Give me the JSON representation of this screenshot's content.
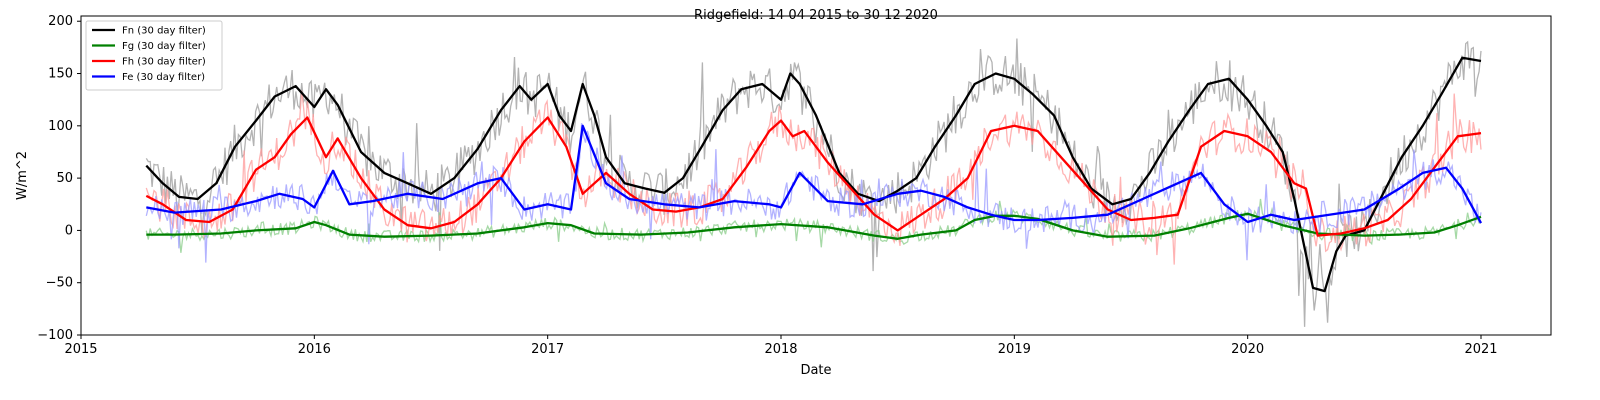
{
  "chart_data": {
    "type": "line",
    "title": "Ridgefield: 14 04 2015 to 30 12 2020",
    "xlabel": "Date",
    "ylabel": "W/m^2",
    "xlim": [
      2015.0,
      2021.3
    ],
    "ylim": [
      -100,
      205
    ],
    "x_ticks": [
      2015,
      2016,
      2017,
      2018,
      2019,
      2020,
      2021
    ],
    "x_tick_labels": [
      "2015",
      "2016",
      "2017",
      "2018",
      "2019",
      "2020",
      "2021"
    ],
    "y_ticks": [
      -100,
      -50,
      0,
      50,
      100,
      150,
      200
    ],
    "y_tick_labels": [
      "−100",
      "−50",
      "0",
      "50",
      "100",
      "150",
      "200"
    ],
    "grid": false,
    "legend_position": "top-left",
    "series": [
      {
        "name": "Fn (30 day filter)",
        "color": "#000000",
        "raw_color": "#999999",
        "x": [
          2015.28,
          2015.35,
          2015.42,
          2015.5,
          2015.58,
          2015.66,
          2015.75,
          2015.83,
          2015.92,
          2016.0,
          2016.05,
          2016.1,
          2016.2,
          2016.3,
          2016.4,
          2016.5,
          2016.6,
          2016.7,
          2016.8,
          2016.88,
          2016.93,
          2017.0,
          2017.05,
          2017.1,
          2017.15,
          2017.2,
          2017.25,
          2017.33,
          2017.42,
          2017.5,
          2017.58,
          2017.66,
          2017.75,
          2017.83,
          2017.92,
          2018.0,
          2018.04,
          2018.08,
          2018.15,
          2018.25,
          2018.33,
          2018.42,
          2018.5,
          2018.58,
          2018.66,
          2018.75,
          2018.83,
          2018.92,
          2019.0,
          2019.08,
          2019.17,
          2019.25,
          2019.33,
          2019.42,
          2019.5,
          2019.58,
          2019.66,
          2019.75,
          2019.83,
          2019.92,
          2020.0,
          2020.08,
          2020.15,
          2020.2,
          2020.28,
          2020.33,
          2020.38,
          2020.42,
          2020.5,
          2020.58,
          2020.66,
          2020.75,
          2020.83,
          2020.92,
          2021.0
        ],
        "values": [
          62,
          45,
          32,
          30,
          45,
          80,
          105,
          128,
          138,
          118,
          135,
          120,
          75,
          55,
          45,
          35,
          50,
          78,
          115,
          138,
          125,
          140,
          110,
          95,
          140,
          110,
          70,
          45,
          40,
          36,
          50,
          80,
          115,
          135,
          140,
          125,
          150,
          140,
          110,
          55,
          35,
          28,
          38,
          50,
          80,
          110,
          140,
          150,
          145,
          130,
          110,
          70,
          40,
          25,
          30,
          55,
          85,
          115,
          140,
          145,
          125,
          100,
          75,
          30,
          -55,
          -58,
          -20,
          -5,
          0,
          35,
          70,
          100,
          130,
          165,
          162
        ]
      },
      {
        "name": "Fg (30 day filter)",
        "color": "#008000",
        "raw_color": "#88cc88",
        "x": [
          2015.28,
          2015.4,
          2015.6,
          2015.75,
          2015.92,
          2016.0,
          2016.05,
          2016.15,
          2016.3,
          2016.5,
          2016.7,
          2016.9,
          2017.0,
          2017.1,
          2017.2,
          2017.4,
          2017.6,
          2017.8,
          2018.0,
          2018.2,
          2018.4,
          2018.5,
          2018.6,
          2018.75,
          2018.83,
          2018.92,
          2019.0,
          2019.1,
          2019.25,
          2019.4,
          2019.6,
          2019.75,
          2019.92,
          2020.0,
          2020.15,
          2020.3,
          2020.5,
          2020.65,
          2020.8,
          2020.9,
          2021.0
        ],
        "values": [
          -4,
          -4,
          -3,
          0,
          2,
          8,
          5,
          -4,
          -6,
          -5,
          -3,
          3,
          7,
          5,
          -3,
          -4,
          -2,
          3,
          6,
          3,
          -5,
          -8,
          -4,
          0,
          10,
          14,
          14,
          11,
          0,
          -6,
          -5,
          2,
          12,
          16,
          5,
          -3,
          -5,
          -4,
          -2,
          5,
          13
        ]
      },
      {
        "name": "Fh (30 day filter)",
        "color": "#ff0000",
        "raw_color": "#ff9999",
        "x": [
          2015.28,
          2015.35,
          2015.45,
          2015.55,
          2015.65,
          2015.75,
          2015.83,
          2015.9,
          2015.97,
          2016.05,
          2016.1,
          2016.2,
          2016.3,
          2016.4,
          2016.5,
          2016.6,
          2016.7,
          2016.8,
          2016.9,
          2017.0,
          2017.08,
          2017.15,
          2017.25,
          2017.35,
          2017.45,
          2017.55,
          2017.65,
          2017.75,
          2017.85,
          2017.95,
          2018.0,
          2018.05,
          2018.1,
          2018.2,
          2018.3,
          2018.4,
          2018.5,
          2018.6,
          2018.7,
          2018.8,
          2018.9,
          2019.0,
          2019.1,
          2019.2,
          2019.3,
          2019.4,
          2019.5,
          2019.6,
          2019.7,
          2019.8,
          2019.9,
          2020.0,
          2020.1,
          2020.2,
          2020.25,
          2020.3,
          2020.4,
          2020.5,
          2020.6,
          2020.7,
          2020.8,
          2020.9,
          2021.0
        ],
        "values": [
          33,
          25,
          10,
          8,
          20,
          58,
          70,
          92,
          108,
          70,
          88,
          50,
          20,
          5,
          2,
          8,
          25,
          50,
          85,
          108,
          80,
          35,
          55,
          35,
          20,
          18,
          22,
          30,
          60,
          95,
          105,
          90,
          95,
          65,
          40,
          15,
          0,
          15,
          30,
          50,
          95,
          100,
          95,
          70,
          45,
          20,
          10,
          12,
          15,
          80,
          95,
          90,
          75,
          45,
          40,
          -5,
          -3,
          2,
          10,
          30,
          60,
          90,
          93
        ]
      },
      {
        "name": "Fe (30 day filter)",
        "color": "#0000ff",
        "raw_color": "#9999ff",
        "x": [
          2015.28,
          2015.4,
          2015.6,
          2015.75,
          2015.85,
          2015.95,
          2016.0,
          2016.08,
          2016.15,
          2016.25,
          2016.4,
          2016.55,
          2016.7,
          2016.8,
          2016.9,
          2017.0,
          2017.1,
          2017.15,
          2017.25,
          2017.35,
          2017.5,
          2017.65,
          2017.8,
          2017.95,
          2018.0,
          2018.08,
          2018.2,
          2018.35,
          2018.5,
          2018.6,
          2018.7,
          2018.8,
          2018.9,
          2019.0,
          2019.1,
          2019.25,
          2019.4,
          2019.55,
          2019.7,
          2019.8,
          2019.9,
          2020.0,
          2020.1,
          2020.2,
          2020.35,
          2020.5,
          2020.65,
          2020.75,
          2020.85,
          2020.92,
          2021.0
        ],
        "values": [
          22,
          17,
          20,
          28,
          35,
          30,
          22,
          57,
          25,
          28,
          35,
          30,
          45,
          50,
          20,
          25,
          20,
          100,
          45,
          30,
          25,
          22,
          28,
          25,
          22,
          55,
          28,
          25,
          35,
          38,
          32,
          22,
          15,
          10,
          10,
          12,
          15,
          30,
          45,
          55,
          25,
          8,
          15,
          10,
          15,
          20,
          40,
          55,
          60,
          40,
          7
        ]
      }
    ]
  }
}
